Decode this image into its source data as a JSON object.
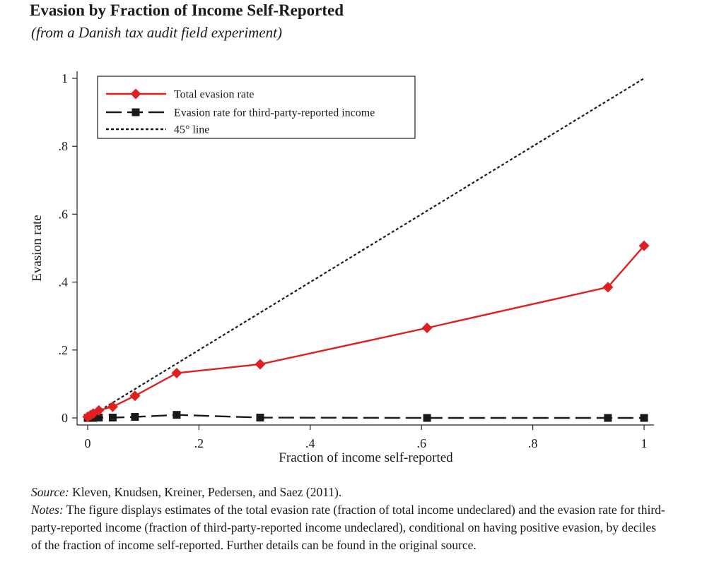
{
  "header": {
    "title": "Evasion by Fraction of Income Self-Reported",
    "subtitle": "(from a Danish tax audit field experiment)"
  },
  "chart_data": {
    "type": "line",
    "xlabel": "Fraction of income self-reported",
    "ylabel": "Evasion rate",
    "xlim": [
      0,
      1
    ],
    "ylim": [
      0,
      1
    ],
    "xticks": [
      0,
      0.2,
      0.4,
      0.6,
      0.8,
      1
    ],
    "xtick_labels": [
      "0",
      ".2",
      ".4",
      ".6",
      ".8",
      "1"
    ],
    "yticks": [
      0,
      0.2,
      0.4,
      0.6,
      0.8,
      1
    ],
    "ytick_labels": [
      "0",
      ".2",
      ".4",
      ".6",
      ".8",
      "1"
    ],
    "grid": false,
    "legend_position": "top-left",
    "series": [
      {
        "name": "Total evasion rate",
        "color": "#e02020",
        "marker": "diamond",
        "line": "solid",
        "x": [
          0.0,
          0.005,
          0.01,
          0.02,
          0.045,
          0.085,
          0.16,
          0.31,
          0.61,
          0.935,
          1.0
        ],
        "y": [
          0.003,
          0.008,
          0.013,
          0.022,
          0.033,
          0.065,
          0.132,
          0.158,
          0.265,
          0.385,
          0.507
        ]
      },
      {
        "name": "Evasion rate for third-party-reported income",
        "color": "#1a1a1a",
        "marker": "square",
        "line": "dashed",
        "x": [
          0.0,
          0.005,
          0.01,
          0.02,
          0.045,
          0.085,
          0.16,
          0.31,
          0.61,
          0.935,
          1.0
        ],
        "y": [
          0.0,
          0.0,
          0.0,
          0.001,
          0.001,
          0.003,
          0.009,
          0.001,
          0.0,
          0.0,
          0.0
        ]
      },
      {
        "name": "45° line",
        "color": "#1a1a1a",
        "marker": "none",
        "line": "dotted",
        "x": [
          0,
          1
        ],
        "y": [
          0,
          1
        ]
      }
    ]
  },
  "footer": {
    "source_label": "Source:",
    "source_text": " Kleven, Knudsen, Kreiner, Pedersen, and Saez (2011).",
    "notes_label": "Notes:",
    "notes_text": " The figure displays estimates of the total evasion rate (fraction of total income undeclared) and the evasion rate for third-party-reported income (fraction of third-party-reported income undeclared), conditional on having positive evasion, by deciles of the fraction of income self-reported. Further details can be found in the original source."
  }
}
